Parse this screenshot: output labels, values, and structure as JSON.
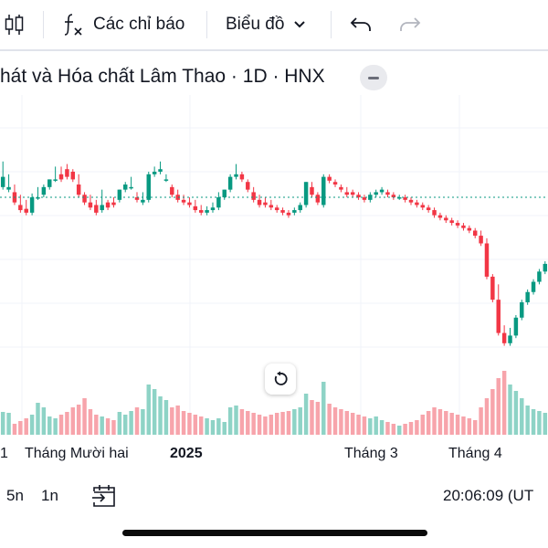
{
  "toolbar": {
    "indicators_label": "Các chỉ báo",
    "chart_type_label": "Biểu đồ"
  },
  "legend": {
    "title": "hát và Hóa chất Lâm Thao · 1D · HNX"
  },
  "bottombar": {
    "range_5y": "5n",
    "range_1y": "1n",
    "time": "20:06:09 (UT"
  },
  "icons": {
    "toolbar_candles": "candlestick-icon",
    "toolbar_fx": "fx-icon",
    "toolbar_chevron": "chevron-down-icon",
    "toolbar_undo": "undo-icon",
    "toolbar_redo": "redo-icon",
    "legend_collapse": "minus-icon",
    "reset": "reset-icon",
    "goto_date": "calendar-arrow-icon"
  },
  "colors": {
    "up": "#089981",
    "down": "#f23645",
    "volume_up": "#8ed3c6",
    "volume_down": "#f7a4ab",
    "last_price_line": "#089981",
    "grid": "#f0f3fa"
  },
  "chart_data": {
    "type": "candlestick",
    "x_tick_labels": [
      {
        "label": "1",
        "bold": false
      },
      {
        "label": "Tháng Mười hai",
        "bold": false
      },
      {
        "label": "2025",
        "bold": true
      },
      {
        "label": "Tháng 3",
        "bold": false
      },
      {
        "label": "Tháng 4",
        "bold": false
      }
    ],
    "candles": [
      [
        145,
        0.3,
        0.5,
        0.38,
        0.25,
        0
      ],
      [
        0,
        0.28,
        0.4,
        0.3,
        0.24,
        0
      ],
      [
        0,
        0.26,
        0.32,
        0.18,
        0.12,
        0
      ],
      [
        0,
        0.16,
        0.24,
        0.12,
        0.15,
        0
      ],
      [
        0,
        0.13,
        0.2,
        0.1,
        0.18,
        0
      ],
      [
        0,
        0.1,
        0.25,
        0.22,
        0.22,
        0
      ],
      [
        0,
        0.22,
        0.3,
        0.22,
        0.35,
        0
      ],
      [
        0,
        0.24,
        0.32,
        0.3,
        0.3,
        0
      ],
      [
        0,
        0.3,
        0.34,
        0.36,
        0.2,
        1
      ],
      [
        0,
        0.36,
        0.46,
        0.36,
        0.18,
        0
      ],
      [
        0,
        0.4,
        0.46,
        0.36,
        0.22,
        0
      ],
      [
        0,
        0.44,
        0.48,
        0.38,
        0.25,
        0
      ],
      [
        0,
        0.42,
        0.44,
        0.36,
        0.3,
        0
      ],
      [
        0,
        0.32,
        0.4,
        0.24,
        0.33,
        0
      ],
      [
        0,
        0.24,
        0.26,
        0.18,
        0.4,
        0
      ],
      [
        0,
        0.18,
        0.24,
        0.14,
        0.28,
        0
      ],
      [
        0,
        0.16,
        0.2,
        0.1,
        0.22,
        0
      ],
      [
        0,
        0.12,
        0.28,
        0.16,
        0.2,
        0
      ],
      [
        0,
        0.18,
        0.2,
        0.14,
        0.18,
        0
      ],
      [
        0,
        0.18,
        0.22,
        0.16,
        0.16,
        0
      ],
      [
        0,
        0.2,
        0.28,
        0.28,
        0.25,
        0
      ],
      [
        0,
        0.28,
        0.34,
        0.32,
        0.22,
        0
      ],
      [
        0,
        0.3,
        0.38,
        0.3,
        0.26,
        0
      ],
      [
        0,
        0.22,
        0.26,
        0.2,
        0.3,
        0
      ],
      [
        0,
        0.18,
        0.26,
        0.2,
        0.28,
        0
      ],
      [
        0,
        0.2,
        0.42,
        0.4,
        0.55,
        0
      ],
      [
        0,
        0.4,
        0.46,
        0.42,
        0.5,
        1
      ],
      [
        0,
        0.42,
        0.5,
        0.44,
        0.42,
        0
      ],
      [
        0,
        0.36,
        0.4,
        0.36,
        0.38,
        0
      ],
      [
        0,
        0.3,
        0.32,
        0.24,
        0.3,
        0
      ],
      [
        0,
        0.24,
        0.28,
        0.2,
        0.32,
        0
      ],
      [
        0,
        0.2,
        0.24,
        0.18,
        0.26,
        0
      ],
      [
        0,
        0.18,
        0.22,
        0.16,
        0.24,
        0
      ],
      [
        0,
        0.15,
        0.2,
        0.12,
        0.22,
        0
      ],
      [
        0,
        0.12,
        0.16,
        0.1,
        0.2,
        0
      ],
      [
        0,
        0.1,
        0.15,
        0.12,
        0.18,
        0
      ],
      [
        0,
        0.12,
        0.18,
        0.14,
        0.16,
        0
      ],
      [
        0,
        0.14,
        0.26,
        0.22,
        0.18,
        0
      ],
      [
        0,
        0.22,
        0.28,
        0.28,
        0.14,
        0
      ],
      [
        0,
        0.28,
        0.4,
        0.38,
        0.3,
        0
      ],
      [
        0,
        0.38,
        0.48,
        0.4,
        0.32,
        0
      ],
      [
        0,
        0.4,
        0.42,
        0.36,
        0.28,
        0
      ],
      [
        0,
        0.34,
        0.36,
        0.28,
        0.26,
        0
      ],
      [
        0,
        0.26,
        0.3,
        0.2,
        0.24,
        0
      ],
      [
        0,
        0.2,
        0.24,
        0.16,
        0.22,
        0
      ],
      [
        0,
        0.18,
        0.22,
        0.16,
        0.2,
        0
      ],
      [
        0,
        0.16,
        0.2,
        0.14,
        0.22,
        0
      ],
      [
        0,
        0.14,
        0.16,
        0.12,
        0.24,
        0
      ],
      [
        0,
        0.12,
        0.14,
        0.1,
        0.25,
        0
      ],
      [
        0,
        0.1,
        0.12,
        0.08,
        0.26,
        0
      ],
      [
        0,
        0.1,
        0.14,
        0.12,
        0.28,
        0
      ],
      [
        0,
        0.12,
        0.18,
        0.16,
        0.3,
        0
      ],
      [
        0,
        0.16,
        0.34,
        0.34,
        0.45,
        0
      ],
      [
        0,
        0.3,
        0.34,
        0.24,
        0.38,
        0
      ],
      [
        0,
        0.24,
        0.26,
        0.18,
        0.36,
        0
      ],
      [
        0,
        0.16,
        0.4,
        0.38,
        0.58,
        0
      ],
      [
        0,
        0.38,
        0.4,
        0.35,
        0.34,
        0
      ],
      [
        0,
        0.34,
        0.36,
        0.32,
        0.3,
        0
      ],
      [
        0,
        0.3,
        0.32,
        0.28,
        0.28,
        0
      ],
      [
        0,
        0.26,
        0.3,
        0.24,
        0.26,
        0
      ],
      [
        0,
        0.26,
        0.28,
        0.24,
        0.24,
        0
      ],
      [
        0,
        0.24,
        0.26,
        0.22,
        0.22,
        0
      ],
      [
        0,
        0.22,
        0.24,
        0.2,
        0.2,
        0
      ],
      [
        0,
        0.2,
        0.26,
        0.24,
        0.18,
        0
      ],
      [
        0,
        0.24,
        0.28,
        0.26,
        0.2,
        0
      ],
      [
        0,
        0.26,
        0.3,
        0.28,
        0.16,
        0
      ],
      [
        0,
        0.26,
        0.28,
        0.24,
        0.14,
        0
      ],
      [
        0,
        0.24,
        0.26,
        0.22,
        0.12,
        0
      ],
      [
        0,
        0.22,
        0.24,
        0.22,
        0.1,
        0
      ],
      [
        0,
        0.22,
        0.24,
        0.2,
        0.12,
        0
      ],
      [
        0,
        0.2,
        0.22,
        0.18,
        0.14,
        0
      ],
      [
        0,
        0.18,
        0.2,
        0.16,
        0.16,
        0
      ],
      [
        0,
        0.16,
        0.18,
        0.14,
        0.22,
        0
      ],
      [
        0,
        0.14,
        0.16,
        0.12,
        0.26,
        0
      ],
      [
        0,
        0.12,
        0.14,
        0.08,
        0.3,
        0
      ],
      [
        0,
        0.08,
        0.1,
        0.06,
        0.28,
        0
      ],
      [
        0,
        0.06,
        0.08,
        0.04,
        0.26,
        0
      ],
      [
        0,
        0.04,
        0.06,
        0.02,
        0.24,
        0
      ],
      [
        0,
        0.02,
        0.04,
        0.0,
        0.22,
        0
      ],
      [
        0,
        0.0,
        0.02,
        -0.02,
        0.2,
        0
      ],
      [
        0,
        -0.02,
        0.0,
        -0.04,
        0.18,
        0
      ],
      [
        0,
        -0.04,
        -0.02,
        -0.08,
        0.16,
        0
      ],
      [
        0,
        -0.08,
        -0.04,
        -0.14,
        0.3,
        0
      ],
      [
        0,
        -0.14,
        -0.1,
        -0.4,
        0.4,
        0
      ],
      [
        0,
        -0.4,
        -0.38,
        -0.58,
        0.5,
        0
      ],
      [
        0,
        -0.58,
        -0.46,
        -0.84,
        0.62,
        0
      ],
      [
        0,
        -0.84,
        -0.78,
        -0.92,
        0.7,
        0
      ],
      [
        0,
        -0.92,
        -0.8,
        -0.86,
        0.55,
        1
      ],
      [
        0,
        -0.86,
        -0.7,
        -0.72,
        0.48,
        1
      ],
      [
        0,
        -0.72,
        -0.58,
        -0.6,
        0.4,
        1
      ],
      [
        0,
        -0.6,
        -0.5,
        -0.52,
        0.32,
        1
      ],
      [
        0,
        -0.52,
        -0.42,
        -0.44,
        0.28,
        1
      ],
      [
        0,
        -0.44,
        -0.34,
        -0.36,
        0.26,
        1
      ],
      [
        0,
        -0.36,
        -0.28,
        -0.3,
        0.24,
        1
      ]
    ]
  }
}
